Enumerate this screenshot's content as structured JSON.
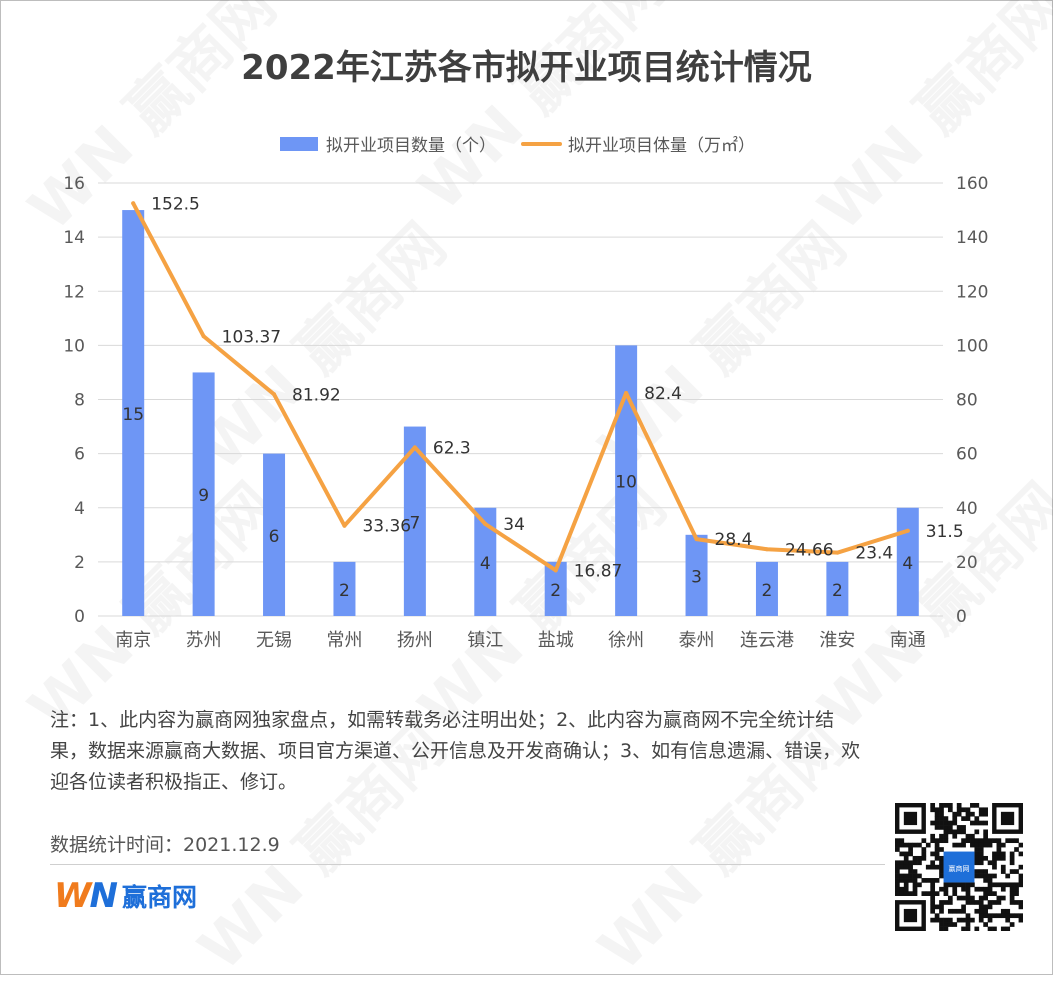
{
  "title": "2022年江苏各市拟开业项目统计情况",
  "watermark": "WN 赢商网",
  "chart_data": {
    "type": "bar",
    "categories": [
      "南京",
      "苏州",
      "无锡",
      "常州",
      "扬州",
      "镇江",
      "盐城",
      "徐州",
      "泰州",
      "连云港",
      "淮安",
      "南通"
    ],
    "series": [
      {
        "name": "拟开业项目数量（个）",
        "type": "bar",
        "axis": "left",
        "color": "#6e96f5",
        "values": [
          15,
          9,
          6,
          2,
          7,
          4,
          2,
          10,
          3,
          2,
          2,
          4
        ]
      },
      {
        "name": "拟开业项目体量（万㎡）",
        "type": "line",
        "axis": "right",
        "color": "#f5a243",
        "values": [
          152.5,
          103.37,
          81.92,
          33.36,
          62.3,
          34,
          16.87,
          82.4,
          28.4,
          24.66,
          23.4,
          31.5
        ]
      }
    ],
    "y_left": {
      "min": 0,
      "max": 16,
      "ticks": [
        0,
        2,
        4,
        6,
        8,
        10,
        12,
        14,
        16
      ]
    },
    "y_right": {
      "min": 0,
      "max": 160,
      "ticks": [
        0,
        20,
        40,
        60,
        80,
        100,
        120,
        140,
        160
      ]
    },
    "grid": true,
    "legend_position": "top"
  },
  "note": "注：1、此内容为赢商网独家盘点，如需转载务必注明出处；2、此内容为赢商网不完全统计结果，数据来源赢商大数据、项目官方渠道、公开信息及开发商确认；3、如有信息遗漏、错误，欢迎各位读者积极指正、修订。",
  "stat_time": "数据统计时间：2021.12.9",
  "brand": {
    "mark_w": "W",
    "mark_n": "N",
    "name": "赢商网",
    "accent_orange": "#f07b1d",
    "accent_blue": "#1e6fd9"
  },
  "qr_center_text": "赢商网"
}
